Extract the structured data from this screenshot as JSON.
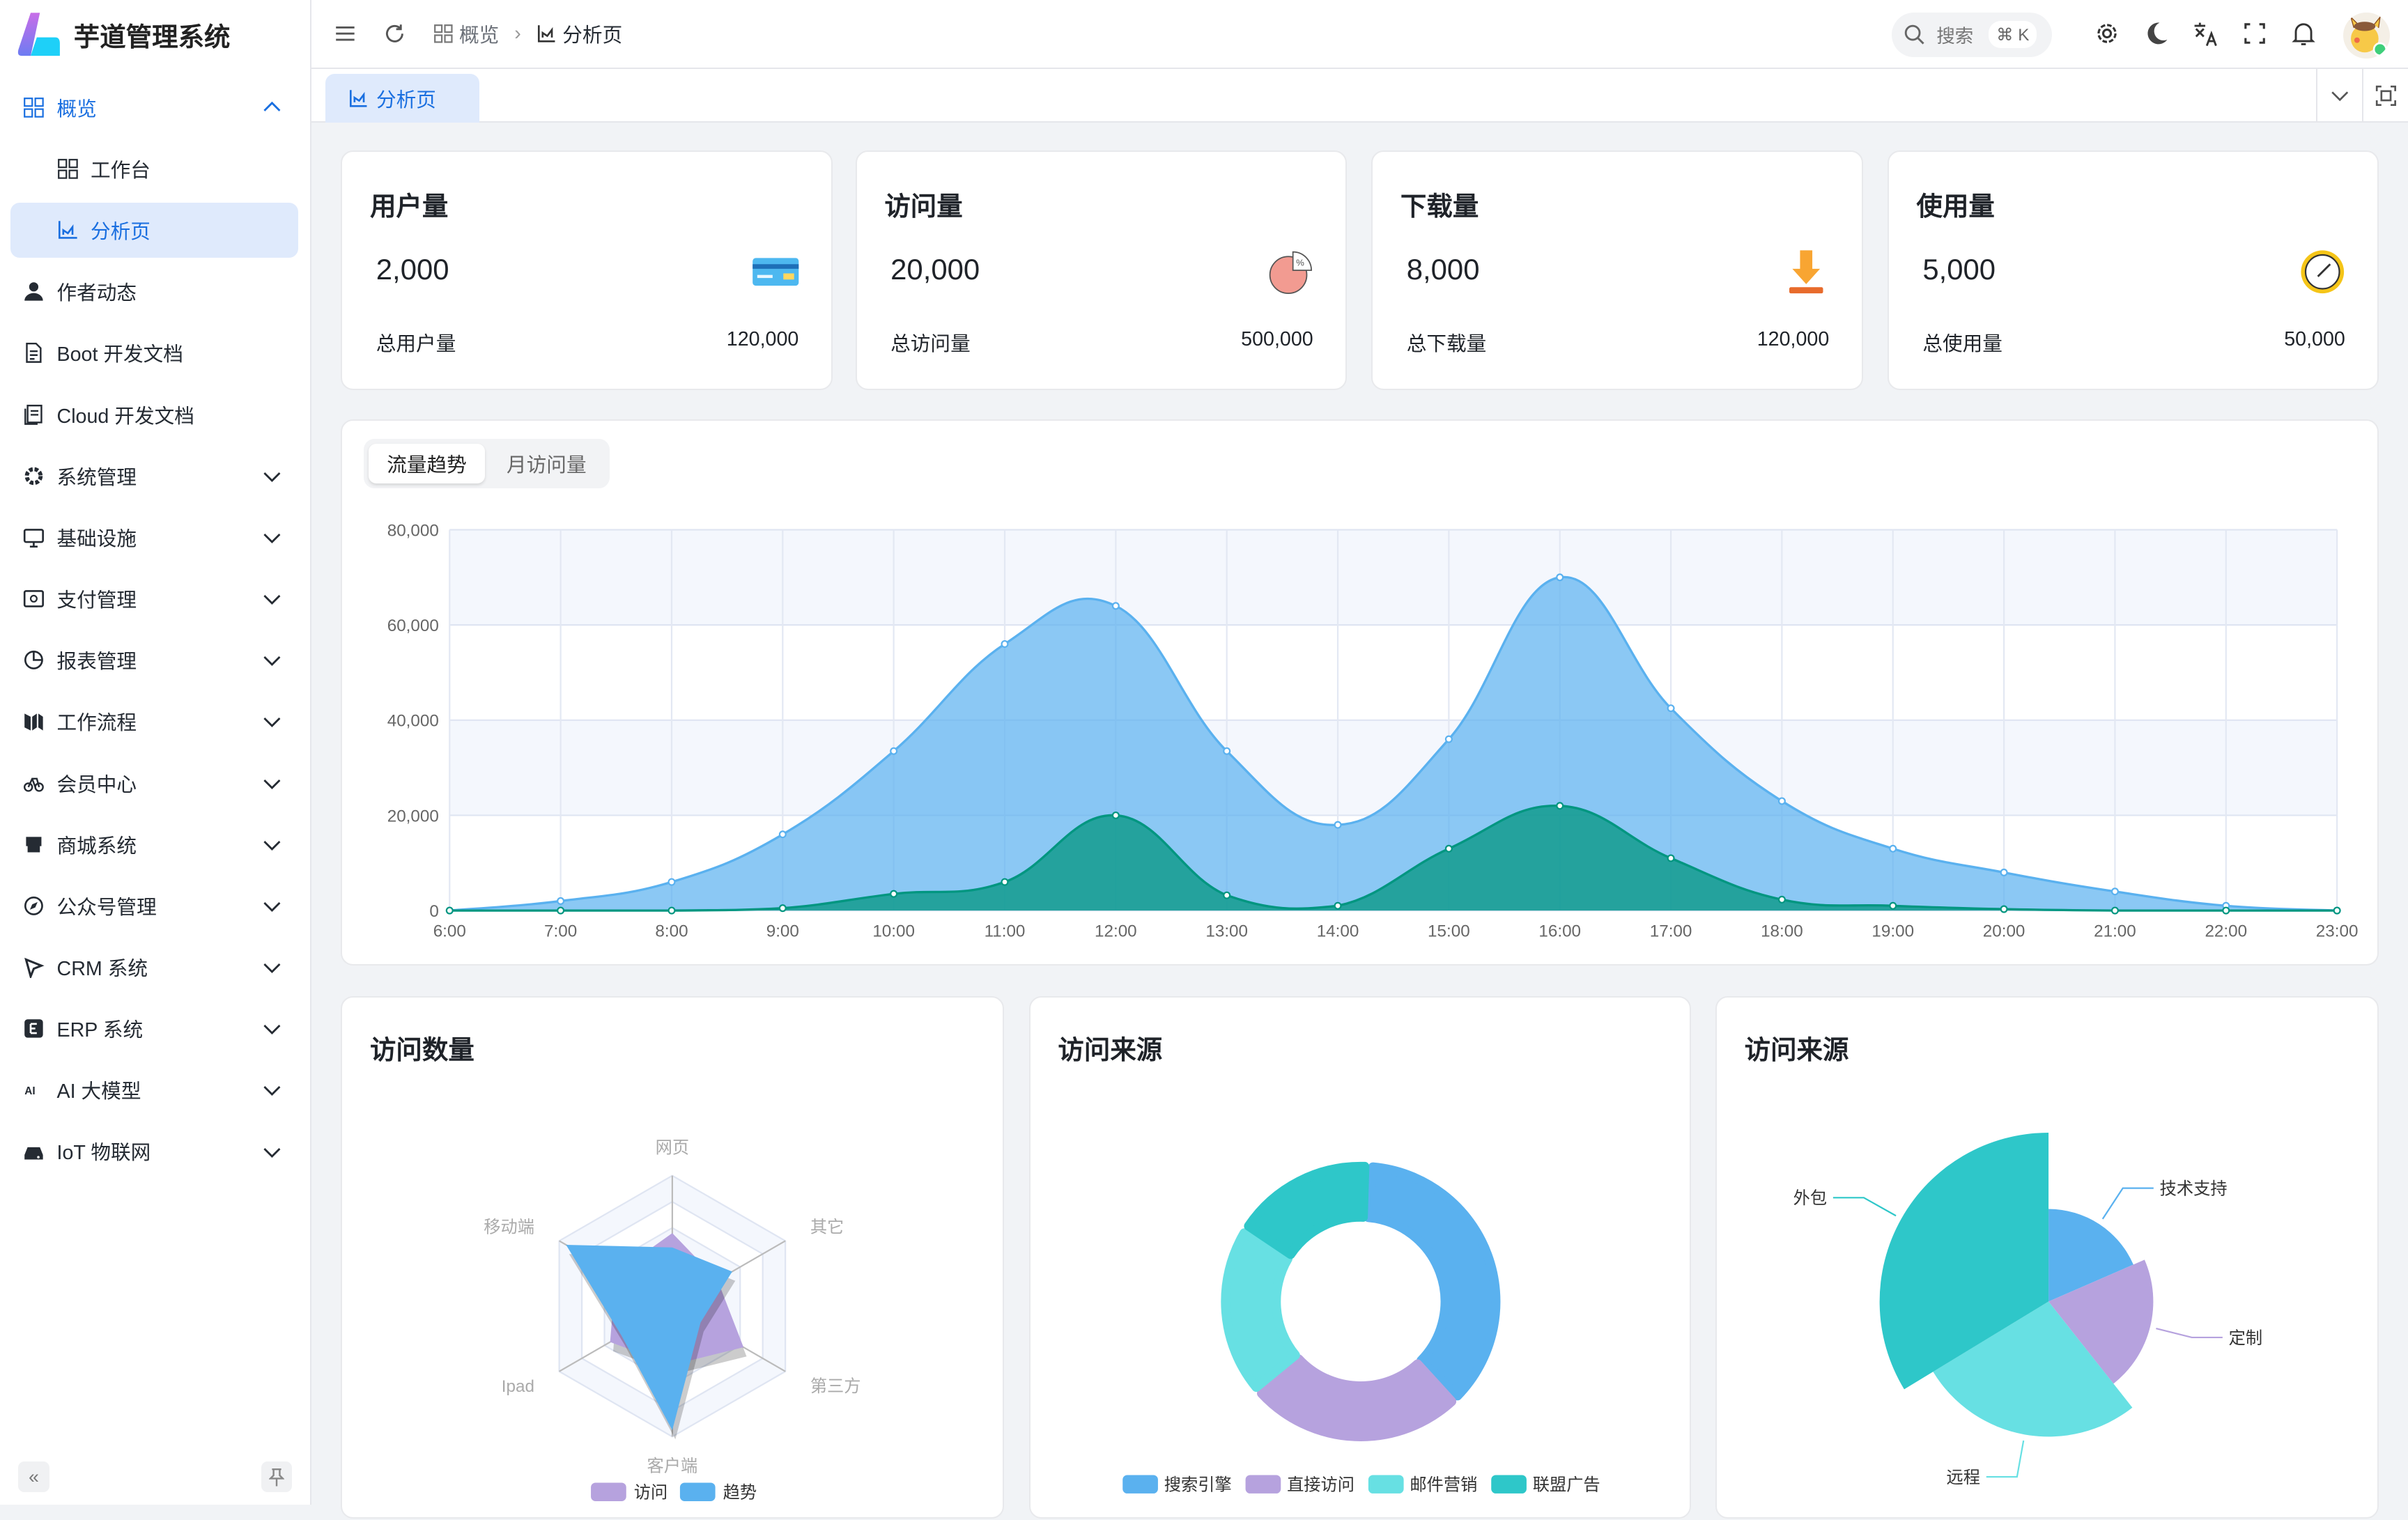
{
  "app": {
    "title": "芋道管理系统"
  },
  "sidebar": {
    "items": [
      {
        "label": "概览",
        "icon": "grid-icon",
        "state": "expanded-active"
      },
      {
        "label": "工作台",
        "icon": "grid-icon",
        "sub": true
      },
      {
        "label": "分析页",
        "icon": "chart-line-icon",
        "sub": true,
        "active": true
      },
      {
        "label": "作者动态",
        "icon": "user-icon"
      },
      {
        "label": "Boot 开发文档",
        "icon": "document-icon"
      },
      {
        "label": "Cloud 开发文档",
        "icon": "documents-icon"
      },
      {
        "label": "系统管理",
        "icon": "gear-icon",
        "chevron": true
      },
      {
        "label": "基础设施",
        "icon": "monitor-icon",
        "chevron": true
      },
      {
        "label": "支付管理",
        "icon": "payment-icon",
        "chevron": true
      },
      {
        "label": "报表管理",
        "icon": "pie-icon",
        "chevron": true
      },
      {
        "label": "工作流程",
        "icon": "workflow-icon",
        "chevron": true
      },
      {
        "label": "会员中心",
        "icon": "bike-icon",
        "chevron": true
      },
      {
        "label": "商城系统",
        "icon": "store-icon",
        "chevron": true
      },
      {
        "label": "公众号管理",
        "icon": "compass-icon",
        "chevron": true
      },
      {
        "label": "CRM 系统",
        "icon": "crm-icon",
        "chevron": true
      },
      {
        "label": "ERP 系统",
        "icon": "erp-icon",
        "chevron": true
      },
      {
        "label": "AI 大模型",
        "icon": "ai-icon",
        "chevron": true
      },
      {
        "label": "IoT 物联网",
        "icon": "router-icon",
        "chevron": true
      }
    ]
  },
  "header": {
    "breadcrumb": [
      "概览",
      "分析页"
    ],
    "search_placeholder": "搜索",
    "search_shortcut": "⌘ K"
  },
  "tabs": [
    {
      "label": "分析页",
      "active": true
    }
  ],
  "stats": [
    {
      "title": "用户量",
      "value": "2,000",
      "footer_label": "总用户量",
      "footer_value": "120,000",
      "icon": "credit-card-icon"
    },
    {
      "title": "访问量",
      "value": "20,000",
      "footer_label": "总访问量",
      "footer_value": "500,000",
      "icon": "pie-chart-icon"
    },
    {
      "title": "下载量",
      "value": "8,000",
      "footer_label": "总下载量",
      "footer_value": "120,000",
      "icon": "download-icon"
    },
    {
      "title": "使用量",
      "value": "5,000",
      "footer_label": "总使用量",
      "footer_value": "50,000",
      "icon": "clock-icon"
    }
  ],
  "trend_tabs": [
    {
      "label": "流量趋势",
      "active": true
    },
    {
      "label": "月访问量"
    }
  ],
  "cards": {
    "radar_title": "访问数量",
    "donut_title": "访问来源",
    "rose_title": "访问来源"
  },
  "chart_data": [
    {
      "type": "area",
      "x": [
        "6:00",
        "7:00",
        "8:00",
        "9:00",
        "10:00",
        "11:00",
        "12:00",
        "13:00",
        "14:00",
        "15:00",
        "16:00",
        "17:00",
        "18:00",
        "19:00",
        "20:00",
        "21:00",
        "22:00",
        "23:00"
      ],
      "yticks": [
        "0",
        "20,000",
        "40,000",
        "60,000",
        "80,000"
      ],
      "ylim": [
        0,
        80000
      ],
      "grid": true,
      "smooth": true,
      "series": [
        {
          "color": "#5ab1ef",
          "values": [
            0,
            2000,
            6000,
            16000,
            33500,
            56000,
            64000,
            33500,
            18000,
            36000,
            70000,
            42500,
            23000,
            13000,
            8000,
            4000,
            1000,
            0
          ]
        },
        {
          "color": "#019680",
          "values": [
            0,
            0,
            0,
            500,
            3500,
            6000,
            20000,
            3200,
            1000,
            13000,
            22000,
            11000,
            2300,
            1000,
            300,
            0,
            0,
            0
          ]
        }
      ]
    },
    {
      "type": "radar",
      "indicators": [
        "网页",
        "其它",
        "第三方",
        "客户端",
        "Ipad",
        "移动端"
      ],
      "max": 100,
      "legend": "bottom",
      "series": [
        {
          "name": "访问",
          "color": "#b6a2de",
          "values": [
            56,
            40,
            63,
            45,
            55,
            50
          ]
        },
        {
          "name": "趋势",
          "color": "#5ab1ef",
          "values": [
            45,
            53,
            25,
            95,
            45,
            94
          ]
        }
      ]
    },
    {
      "type": "pie",
      "variant": "donut",
      "legend": "bottom",
      "slices": [
        {
          "name": "搜索引擎",
          "value": 1048,
          "color": "#5ab1ef"
        },
        {
          "name": "直接访问",
          "value": 735,
          "color": "#b6a2de"
        },
        {
          "name": "邮件营销",
          "value": 580,
          "color": "#67e0e3"
        },
        {
          "name": "联盟广告",
          "value": 484,
          "color": "#2ec7c9"
        }
      ]
    },
    {
      "type": "pie",
      "variant": "rose-radius",
      "slices": [
        {
          "name": "技术支持",
          "value": 274,
          "color": "#5ab1ef"
        },
        {
          "name": "定制",
          "value": 310,
          "color": "#b6a2de"
        },
        {
          "name": "远程",
          "value": 400,
          "color": "#67e0e3"
        },
        {
          "name": "外包",
          "value": 500,
          "color": "#2ec7c9"
        }
      ]
    }
  ]
}
